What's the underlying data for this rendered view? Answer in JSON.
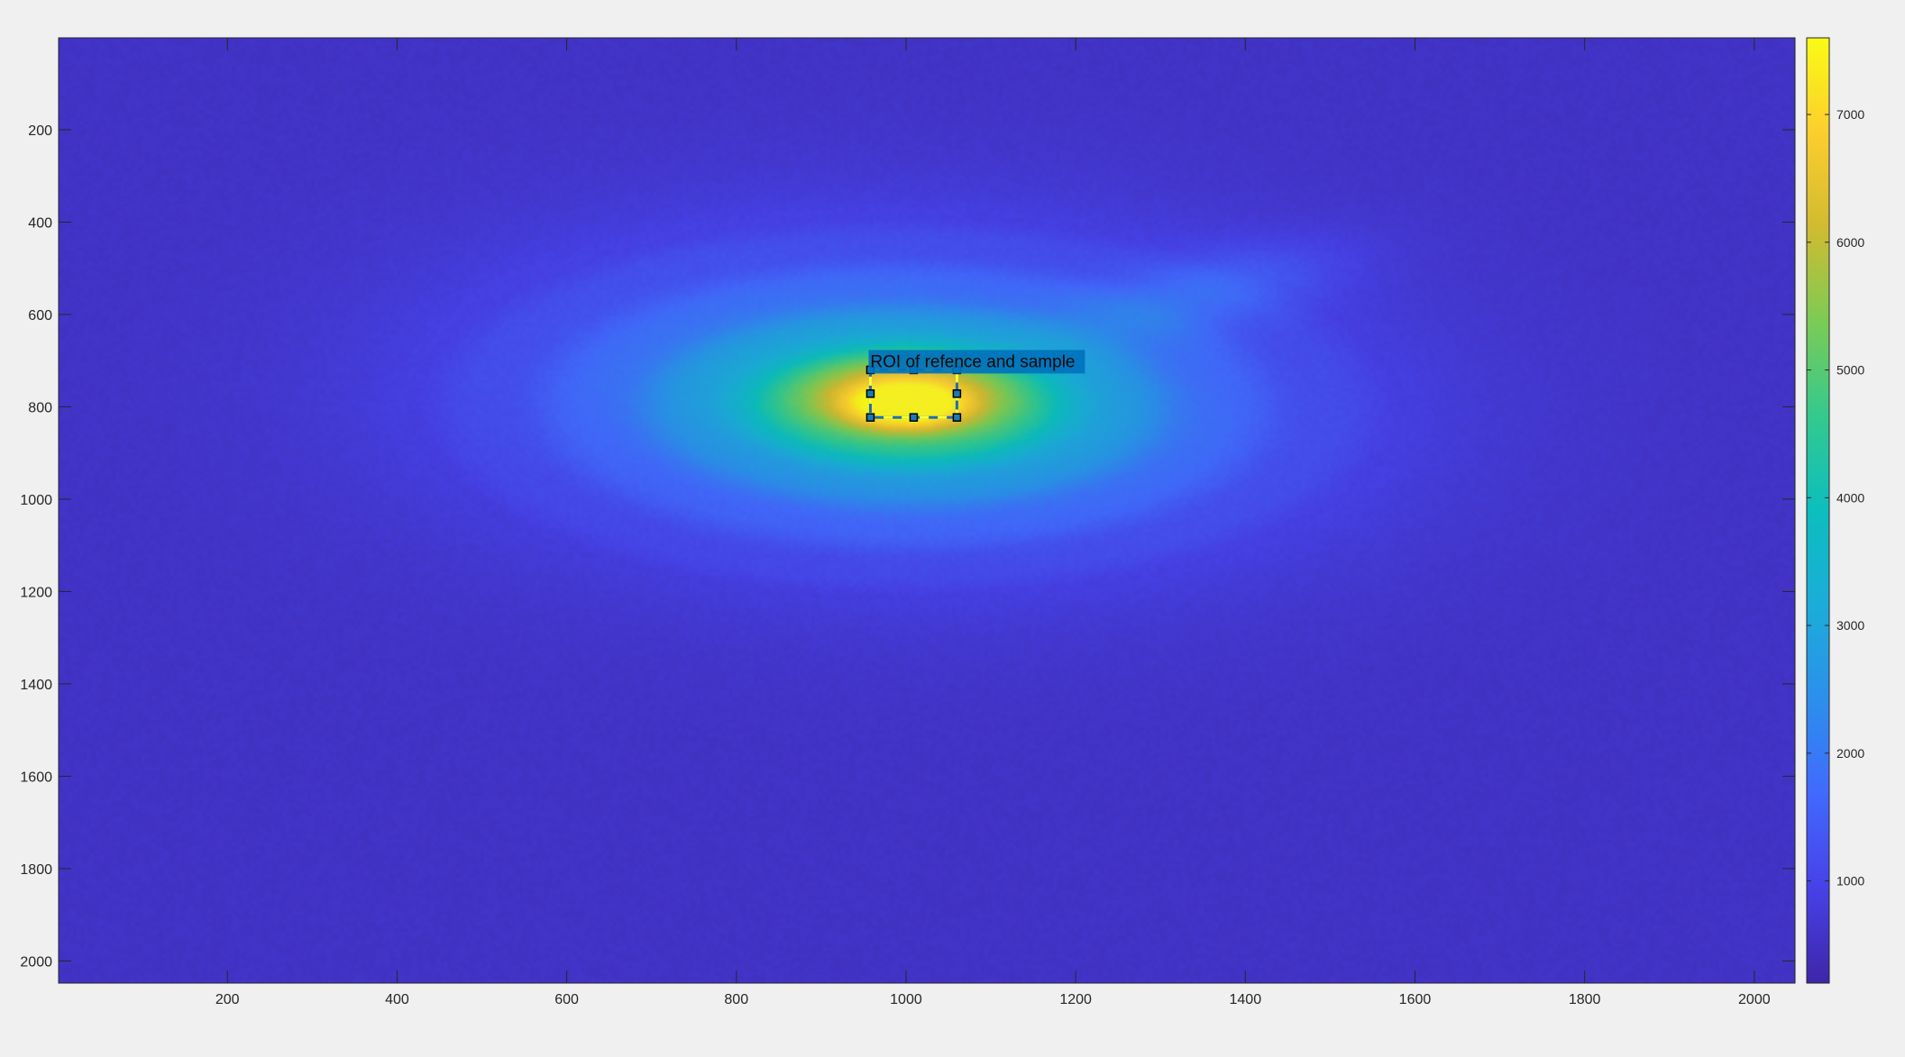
{
  "chart_data": {
    "type": "heatmap",
    "title": "",
    "xlabel": "",
    "ylabel": "",
    "xlim": [
      1,
      2048
    ],
    "ylim": [
      1,
      2048
    ],
    "y_direction": "reversed",
    "x_ticks": [
      200,
      400,
      600,
      800,
      1000,
      1200,
      1400,
      1600,
      1800,
      2000
    ],
    "y_ticks": [
      200,
      400,
      600,
      800,
      1000,
      1200,
      1400,
      1600,
      1800,
      2000
    ],
    "x_tick_labels": [
      "200",
      "400",
      "600",
      "800",
      "1000",
      "1200",
      "1400",
      "1600",
      "1800",
      "2000"
    ],
    "y_tick_labels": [
      "200",
      "400",
      "600",
      "800",
      "1000",
      "1200",
      "1400",
      "1600",
      "1800",
      "2000"
    ],
    "colormap": "parula",
    "colorbar": {
      "location": "right",
      "clim": [
        200,
        7600
      ],
      "ticks": [
        1000,
        2000,
        3000,
        4000,
        5000,
        6000,
        7000
      ],
      "tick_labels": [
        "1000",
        "2000",
        "3000",
        "4000",
        "5000",
        "6000",
        "7000"
      ]
    },
    "background_level": 600,
    "features": [
      {
        "name": "main beam spot (outer halo)",
        "center_x": 1000,
        "center_y": 790,
        "radius_x": 450,
        "radius_y": 320,
        "angle_deg": 6,
        "amplitude": 1800
      },
      {
        "name": "main beam spot (body)",
        "center_x": 1000,
        "center_y": 795,
        "radius_x": 250,
        "radius_y": 170,
        "angle_deg": 4,
        "amplitude": 2300
      },
      {
        "name": "main beam spot (peak)",
        "center_x": 1000,
        "center_y": 785,
        "radius_x": 115,
        "radius_y": 80,
        "angle_deg": 0,
        "amplitude": 3700
      },
      {
        "name": "diffraction streak",
        "center_x": 1340,
        "center_y": 560,
        "radius_x": 180,
        "radius_y": 75,
        "angle_deg": -28,
        "amplitude": 700
      }
    ],
    "roi": {
      "label": "ROI of refence and sample",
      "x_range": [
        958,
        1060
      ],
      "y_range": [
        720,
        823
      ],
      "edge_color": "#ffff33",
      "label_background": "#0072bd"
    },
    "grid": false
  }
}
